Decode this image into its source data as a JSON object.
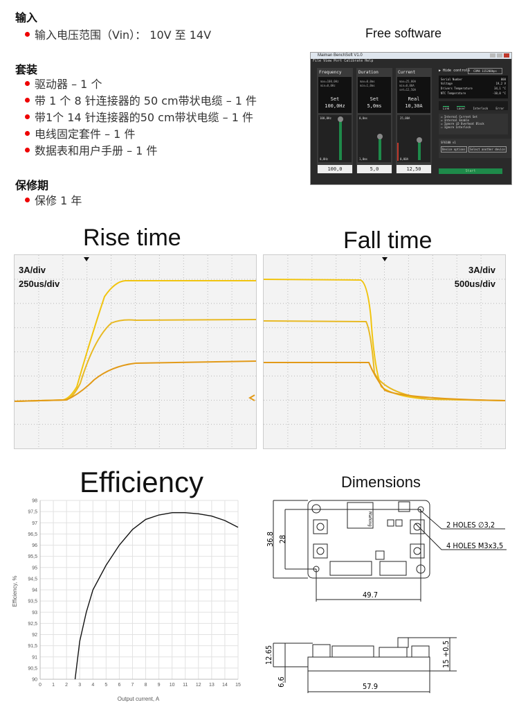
{
  "spec": {
    "input": {
      "heading": "输入",
      "items": [
        "输入电压范围（Vin）： 10V 至 14V"
      ]
    },
    "kit": {
      "heading": "套装",
      "items": [
        "驱动器 – 1 个",
        "带 1 个 8 针连接器的 50 cm带状电缆 – 1 件",
        "带1个 14 针连接器的50 cm带状电缆 – 1 件",
        "电线固定套件 – 1 件",
        "数据表和用户手册 – 1 件"
      ]
    },
    "warranty": {
      "heading": "保修期",
      "items": [
        "保修 1 年"
      ]
    },
    "bullet_color": "#e00000"
  },
  "software": {
    "caption": "Free software",
    "window_title": "Maiman BenchSoft V1.0",
    "menu": [
      "File",
      "View",
      "Port",
      "Calibrate",
      "Help"
    ],
    "columns": [
      {
        "title": "Frequency",
        "max": "max=100,0Hz",
        "min": "min=0,0Hz",
        "set": "",
        "mode": "Set",
        "value": "100,0Hz",
        "top": "100,0Hz",
        "bottom": "0,0Hz",
        "input": "100,0"
      },
      {
        "title": "Duration",
        "max": "max=0,0ms",
        "min": "min=1,0ms",
        "set": "",
        "mode": "Set",
        "value": "5,0ms",
        "top": "0,0ms",
        "bottom": "1,0ms",
        "input": "5,0"
      },
      {
        "title": "Current",
        "max": "max=25,00A",
        "min": "min=0,00A",
        "set": "set=12,50A",
        "mode": "Real",
        "value": "10,30A",
        "top": "25,00A",
        "bottom": "0,00A",
        "input": "12,50"
      }
    ],
    "hide_controls": "Hide controls",
    "port": "COM4",
    "baud": "115200bps",
    "info": [
      {
        "label": "Serial Number",
        "value": "000",
        "unit": ""
      },
      {
        "label": "Voltage",
        "value": "19,2",
        "unit": "V"
      },
      {
        "label": "Drivers Temperature",
        "value": "34,1",
        "unit": "°C"
      },
      {
        "label": "NTC Temperature",
        "value": "-10,0",
        "unit": "°C"
      }
    ],
    "status": [
      "Link",
      "Laser",
      "Interlock",
      "Error"
    ],
    "checks": [
      {
        "label": "Internal Current Set",
        "checked": true
      },
      {
        "label": "Internal Enable",
        "checked": true
      },
      {
        "label": "Ignore LD Overheat Block",
        "checked": true
      },
      {
        "label": "Ignore Interlock",
        "checked": false
      }
    ],
    "device": "SF6100 v1",
    "device_options": "Device options",
    "select_device": "Select another device",
    "start": "Start"
  },
  "rise": {
    "title": "Rise time",
    "scale1": "3A/div",
    "scale2": "250us/div"
  },
  "fall": {
    "title": "Fall time",
    "scale1": "3A/div",
    "scale2": "500us/div"
  },
  "efficiency": {
    "title": "Efficiency"
  },
  "chart_data": {
    "type": "line",
    "xlabel": "Output current, A",
    "ylabel": "Efficiency, %",
    "xlim": [
      0,
      15
    ],
    "ylim": [
      90,
      98
    ],
    "xticks": [
      "0",
      "1",
      "2",
      "3",
      "4",
      "5",
      "6",
      "7",
      "8",
      "9",
      "10",
      "11",
      "12",
      "13",
      "14",
      "15"
    ],
    "yticks": [
      "90",
      "90,5",
      "91",
      "91,5",
      "92",
      "92,5",
      "93",
      "93,5",
      "94",
      "94,5",
      "95",
      "95,5",
      "96",
      "96,5",
      "97",
      "97,5",
      "98"
    ],
    "grid": true,
    "line_color": "#111111",
    "x": [
      2.65,
      3,
      3.5,
      4,
      5,
      6,
      7,
      8,
      9,
      10,
      11,
      12,
      13,
      14,
      15
    ],
    "y": [
      90,
      91.7,
      93,
      94,
      95.1,
      96,
      96.7,
      97.15,
      97.35,
      97.45,
      97.45,
      97.4,
      97.3,
      97.1,
      96.8
    ]
  },
  "dimensions": {
    "title": "Dimensions",
    "marking": "Marking",
    "holes1": "2 HOLES ∅3,2",
    "holes2": "4 HOLES M3x3,5",
    "d_height": "36.8",
    "d_hole_v": "28",
    "d_hole_h": "49.7",
    "d_total_h": "12.65",
    "d_pcb": "6.6",
    "d_width": "57.9",
    "d_max_h": "15 +0.5"
  }
}
